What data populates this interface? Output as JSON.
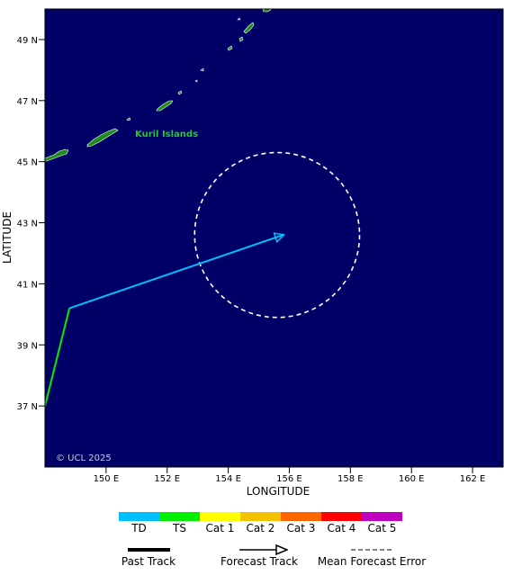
{
  "map": {
    "region_label": "Kuril Islands",
    "copyright": "© UCL 2025",
    "x_axis_title": "LONGITUDE",
    "y_axis_title": "LATITUDE",
    "lon_range": [
      148,
      163
    ],
    "lat_range": [
      35,
      50
    ],
    "lon_ticks": [
      "150 E",
      "152 E",
      "154 E",
      "156 E",
      "158 E",
      "160 E",
      "162 E"
    ],
    "lat_ticks": [
      "49 N",
      "47 N",
      "45 N",
      "43 N",
      "41 N",
      "39 N",
      "37 N"
    ],
    "ocean_color": "#000066",
    "land_color": "#1c8c1c",
    "label_color": "#22cc22"
  },
  "track": {
    "past": [
      {
        "lon": 148.0,
        "lat": 37.0
      },
      {
        "lon": 148.8,
        "lat": 40.2
      }
    ],
    "past_color": "#00ee00",
    "forecast_start": {
      "lon": 148.8,
      "lat": 40.2
    },
    "forecast_end": {
      "lon": 155.8,
      "lat": 42.6
    },
    "forecast_color": "#00bfff",
    "error_circle_center": {
      "lon": 155.6,
      "lat": 42.6
    },
    "error_circle_radius_deg_lon": 2.7
  },
  "legend": {
    "categories": [
      {
        "label": "TD",
        "color": "#00bfff"
      },
      {
        "label": "TS",
        "color": "#00ee00"
      },
      {
        "label": "Cat 1",
        "color": "#ffff00"
      },
      {
        "label": "Cat 2",
        "color": "#f5c000"
      },
      {
        "label": "Cat 3",
        "color": "#ff6600"
      },
      {
        "label": "Cat 4",
        "color": "#ff0000"
      },
      {
        "label": "Cat 5",
        "color": "#c000c0"
      }
    ],
    "past_track_label": "Past Track",
    "forecast_track_label": "Forecast Track",
    "mean_error_label": "Mean Forecast Error"
  }
}
